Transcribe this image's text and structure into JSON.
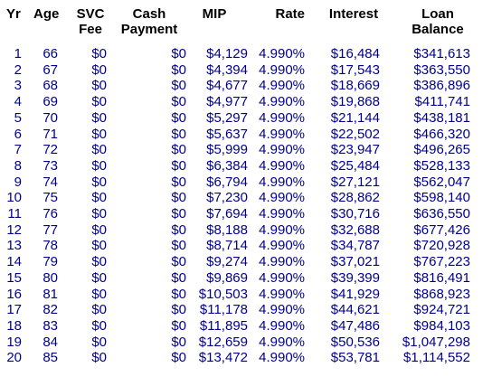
{
  "table": {
    "headers": {
      "yr": "Yr",
      "age": "Age",
      "svc_line1": "SVC",
      "svc_line2": "Fee",
      "cash_line1": "Cash",
      "cash_line2": "Payment",
      "mip": "MIP",
      "rate": "Rate",
      "interest": "Interest",
      "loan_line1": "Loan",
      "loan_line2": "Balance"
    },
    "rows": [
      {
        "yr": "1",
        "age": "66",
        "svc": "$0",
        "cash": "$0",
        "mip": "$4,129",
        "rate": "4.990%",
        "interest": "$16,484",
        "balance": "$341,613"
      },
      {
        "yr": "2",
        "age": "67",
        "svc": "$0",
        "cash": "$0",
        "mip": "$4,394",
        "rate": "4.990%",
        "interest": "$17,543",
        "balance": "$363,550"
      },
      {
        "yr": "3",
        "age": "68",
        "svc": "$0",
        "cash": "$0",
        "mip": "$4,677",
        "rate": "4.990%",
        "interest": "$18,669",
        "balance": "$386,896"
      },
      {
        "yr": "4",
        "age": "69",
        "svc": "$0",
        "cash": "$0",
        "mip": "$4,977",
        "rate": "4.990%",
        "interest": "$19,868",
        "balance": "$411,741"
      },
      {
        "yr": "5",
        "age": "70",
        "svc": "$0",
        "cash": "$0",
        "mip": "$5,297",
        "rate": "4.990%",
        "interest": "$21,144",
        "balance": "$438,181"
      },
      {
        "yr": "6",
        "age": "71",
        "svc": "$0",
        "cash": "$0",
        "mip": "$5,637",
        "rate": "4.990%",
        "interest": "$22,502",
        "balance": "$466,320"
      },
      {
        "yr": "7",
        "age": "72",
        "svc": "$0",
        "cash": "$0",
        "mip": "$5,999",
        "rate": "4.990%",
        "interest": "$23,947",
        "balance": "$496,265"
      },
      {
        "yr": "8",
        "age": "73",
        "svc": "$0",
        "cash": "$0",
        "mip": "$6,384",
        "rate": "4.990%",
        "interest": "$25,484",
        "balance": "$528,133"
      },
      {
        "yr": "9",
        "age": "74",
        "svc": "$0",
        "cash": "$0",
        "mip": "$6,794",
        "rate": "4.990%",
        "interest": "$27,121",
        "balance": "$562,047"
      },
      {
        "yr": "10",
        "age": "75",
        "svc": "$0",
        "cash": "$0",
        "mip": "$7,230",
        "rate": "4.990%",
        "interest": "$28,862",
        "balance": "$598,140"
      },
      {
        "yr": "11",
        "age": "76",
        "svc": "$0",
        "cash": "$0",
        "mip": "$7,694",
        "rate": "4.990%",
        "interest": "$30,716",
        "balance": "$636,550"
      },
      {
        "yr": "12",
        "age": "77",
        "svc": "$0",
        "cash": "$0",
        "mip": "$8,188",
        "rate": "4.990%",
        "interest": "$32,688",
        "balance": "$677,426"
      },
      {
        "yr": "13",
        "age": "78",
        "svc": "$0",
        "cash": "$0",
        "mip": "$8,714",
        "rate": "4.990%",
        "interest": "$34,787",
        "balance": "$720,928"
      },
      {
        "yr": "14",
        "age": "79",
        "svc": "$0",
        "cash": "$0",
        "mip": "$9,274",
        "rate": "4.990%",
        "interest": "$37,021",
        "balance": "$767,223"
      },
      {
        "yr": "15",
        "age": "80",
        "svc": "$0",
        "cash": "$0",
        "mip": "$9,869",
        "rate": "4.990%",
        "interest": "$39,399",
        "balance": "$816,491"
      },
      {
        "yr": "16",
        "age": "81",
        "svc": "$0",
        "cash": "$0",
        "mip": "$10,503",
        "rate": "4.990%",
        "interest": "$41,929",
        "balance": "$868,923"
      },
      {
        "yr": "17",
        "age": "82",
        "svc": "$0",
        "cash": "$0",
        "mip": "$11,178",
        "rate": "4.990%",
        "interest": "$44,621",
        "balance": "$924,721"
      },
      {
        "yr": "18",
        "age": "83",
        "svc": "$0",
        "cash": "$0",
        "mip": "$11,895",
        "rate": "4.990%",
        "interest": "$47,486",
        "balance": "$984,103"
      },
      {
        "yr": "19",
        "age": "84",
        "svc": "$0",
        "cash": "$0",
        "mip": "$12,659",
        "rate": "4.990%",
        "interest": "$50,536",
        "balance": "$1,047,298"
      },
      {
        "yr": "20",
        "age": "85",
        "svc": "$0",
        "cash": "$0",
        "mip": "$13,472",
        "rate": "4.990%",
        "interest": "$53,781",
        "balance": "$1,114,552"
      }
    ]
  },
  "colors": {
    "header_text": "#000000",
    "value_text": "#00008b",
    "background": "#ffffff"
  }
}
